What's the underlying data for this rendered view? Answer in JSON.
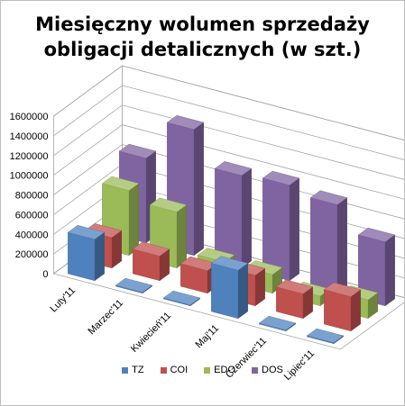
{
  "chart_data": {
    "type": "bar",
    "title_lines": [
      "Miesięczny wolumen sprzedaży",
      "obligacji detalicznych (w szt.)"
    ],
    "categories": [
      "Luty'11",
      "Marzec'11",
      "Kwiecień'11",
      "Maj'11",
      "Czerwiec'11",
      "Lipiec'11"
    ],
    "series": [
      {
        "name": "TZ",
        "color": "#4f81bd",
        "values": [
          420000,
          10000,
          10000,
          490000,
          10000,
          10000
        ]
      },
      {
        "name": "COI",
        "color": "#c0504d",
        "values": [
          310000,
          250000,
          230000,
          310000,
          250000,
          350000
        ]
      },
      {
        "name": "EDO",
        "color": "#9bbb59",
        "values": [
          660000,
          570000,
          190000,
          190000,
          100000,
          190000
        ]
      },
      {
        "name": "DOS",
        "color": "#8064a2",
        "values": [
          860000,
          1280000,
          940000,
          970000,
          900000,
          650000
        ]
      }
    ],
    "y_ticks": [
      "0",
      "200000",
      "400000",
      "600000",
      "800000",
      "1000000",
      "1200000",
      "1400000",
      "1600000"
    ],
    "ylim": [
      0,
      1600000
    ],
    "grid": true,
    "legend_position": "bottom"
  }
}
